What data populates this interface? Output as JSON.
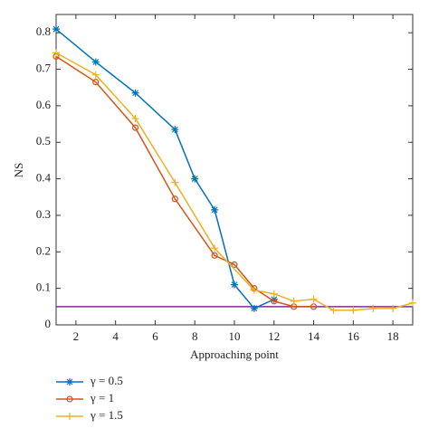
{
  "chart_data": {
    "type": "line",
    "xlabel": "Approaching point",
    "ylabel": "NS",
    "xlim": [
      1,
      19
    ],
    "ylim": [
      0,
      0.85
    ],
    "xticks": [
      2,
      4,
      6,
      8,
      10,
      12,
      14,
      16,
      18
    ],
    "yticks": [
      0,
      0.1,
      0.2,
      0.3,
      0.4,
      0.5,
      0.6,
      0.7,
      0.8
    ],
    "reference_line": {
      "value": 0.05,
      "color": "#7e2f8e"
    },
    "series": [
      {
        "name": "γ = 0.5",
        "color": "#0072bd",
        "marker": "asterisk",
        "x": [
          1,
          3,
          5,
          7,
          8,
          9,
          10,
          11,
          12
        ],
        "values": [
          0.81,
          0.72,
          0.635,
          0.535,
          0.4,
          0.315,
          0.11,
          0.045,
          0.07
        ]
      },
      {
        "name": "γ = 1",
        "color": "#d95319",
        "marker": "circle",
        "x": [
          1,
          3,
          5,
          7,
          9,
          10,
          11,
          12,
          13,
          14
        ],
        "values": [
          0.735,
          0.665,
          0.54,
          0.345,
          0.19,
          0.165,
          0.1,
          0.065,
          0.05,
          0.05
        ]
      },
      {
        "name": "γ = 1.5",
        "color": "#edb120",
        "marker": "plus",
        "x": [
          1,
          3,
          5,
          7,
          9,
          11,
          12,
          13,
          14,
          15,
          16,
          17,
          18,
          19
        ],
        "values": [
          0.745,
          0.685,
          0.565,
          0.39,
          0.21,
          0.095,
          0.085,
          0.065,
          0.07,
          0.04,
          0.04,
          0.045,
          0.045,
          0.06
        ]
      }
    ]
  }
}
